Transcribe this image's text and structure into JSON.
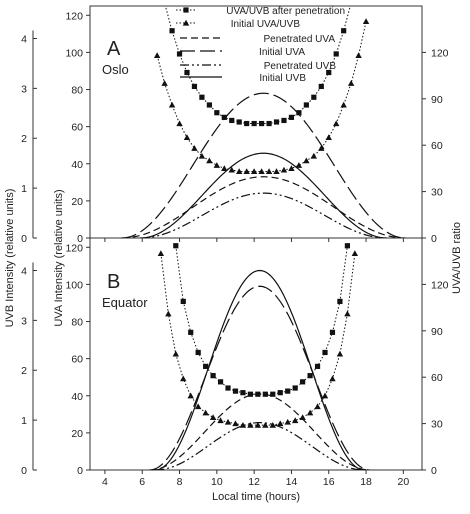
{
  "chart_data": {
    "type": "line",
    "xlabel": "Local time (hours)",
    "xlim": [
      3.2,
      21
    ],
    "xticks": [
      4,
      6,
      8,
      10,
      12,
      14,
      16,
      18,
      20
    ],
    "left_outer_axis": {
      "label": "UVB Intensity (relative units)",
      "ticks": [
        0,
        1,
        2,
        3,
        4
      ]
    },
    "left_axis": {
      "label": "UVA Intensity (relative units)",
      "ylim": [
        0,
        125
      ],
      "ticks": [
        0,
        20,
        40,
        60,
        80,
        100,
        120
      ]
    },
    "right_axis": {
      "label": "UVA/UVB ratio",
      "ylim": [
        0,
        150
      ],
      "ticks": [
        0,
        30,
        60,
        90,
        120
      ]
    },
    "legend": {
      "placement": "top-right of panel A",
      "entries": [
        {
          "name": "UVA/UVB after penetration",
          "style": "dotted-square"
        },
        {
          "name": "Initial UVA/UVB",
          "style": "dotted-triangle"
        },
        {
          "name": "Penetrated UVA",
          "style": "dash"
        },
        {
          "name": "Initial UVA",
          "style": "longdash"
        },
        {
          "name": "Penetrated UVB",
          "style": "dashdotdot"
        },
        {
          "name": "Initial UVB",
          "style": "solid"
        }
      ]
    },
    "panels": [
      {
        "letter": "A",
        "place": "Oslo",
        "uva_penetrated": {
          "center": 12.5,
          "peak": 33,
          "half_width": 7.6
        },
        "uva_initial": {
          "center": 12.5,
          "peak": 78,
          "half_width": 7.6
        },
        "uvb_penetrated": {
          "center": 12.5,
          "peak": 0.9,
          "half_width": 6.6
        },
        "uvb_initial": {
          "center": 12.5,
          "peak": 1.7,
          "half_width": 6.6
        },
        "ratio_after_penetration": {
          "x": [
            6.8,
            7.2,
            7.6,
            8.0,
            8.4,
            8.8,
            9.2,
            9.6,
            10.0,
            10.4,
            10.8,
            11.2,
            11.6,
            12.0,
            12.4,
            12.8,
            13.2,
            13.6,
            14.0,
            14.4,
            14.8,
            15.2,
            15.6,
            16.0,
            16.4,
            16.8,
            17.2,
            17.6,
            18.0
          ],
          "y": [
            173,
            152,
            134,
            119,
            107,
            98,
            91,
            86,
            81,
            78,
            76,
            75,
            74,
            74,
            74,
            74,
            75,
            76,
            78,
            81,
            86,
            91,
            98,
            107,
            119,
            134,
            152,
            173,
            198
          ]
        },
        "ratio_initial": {
          "x": [
            6.8,
            7.2,
            7.6,
            8.0,
            8.4,
            8.8,
            9.2,
            9.6,
            10.0,
            10.4,
            10.8,
            11.2,
            11.6,
            12.0,
            12.4,
            12.8,
            13.2,
            13.6,
            14.0,
            14.4,
            14.8,
            15.2,
            15.6,
            16.0,
            16.4,
            16.8,
            17.2,
            17.6,
            18.0
          ],
          "y": [
            118,
            100,
            86,
            74,
            65,
            58,
            53,
            50,
            47,
            45,
            44,
            43,
            43,
            43,
            43,
            43,
            43,
            44,
            45,
            47,
            50,
            53,
            58,
            65,
            74,
            86,
            100,
            118,
            140
          ]
        }
      },
      {
        "letter": "B",
        "place": "Equator",
        "uva_penetrated": {
          "center": 12.3,
          "peak": 41,
          "half_width": 5.9
        },
        "uva_initial": {
          "center": 12.3,
          "peak": 99,
          "half_width": 5.9
        },
        "uvb_penetrated": {
          "center": 12.3,
          "peak": 0.95,
          "half_width": 5.6
        },
        "uvb_initial": {
          "center": 12.3,
          "peak": 4.0,
          "half_width": 5.6
        },
        "ratio_after_penetration": {
          "x": [
            7.8,
            8.2,
            8.6,
            9.0,
            9.4,
            9.8,
            10.2,
            10.6,
            11.0,
            11.4,
            11.8,
            12.2,
            12.6,
            13.0,
            13.4,
            13.8,
            14.2,
            14.6,
            15.0,
            15.4,
            15.8,
            16.2,
            16.6,
            17.0
          ],
          "y": [
            145,
            109,
            89,
            76,
            67,
            61,
            57,
            53,
            51,
            50,
            49,
            49,
            49,
            49,
            50,
            51,
            53,
            57,
            61,
            67,
            76,
            89,
            109,
            145
          ]
        },
        "ratio_initial": {
          "x": [
            7.0,
            7.4,
            7.8,
            8.2,
            8.6,
            9.0,
            9.4,
            9.8,
            10.2,
            10.6,
            11.0,
            11.4,
            11.8,
            12.2,
            12.6,
            13.0,
            13.4,
            13.8,
            14.2,
            14.6,
            15.0,
            15.4,
            15.8,
            16.2,
            16.6,
            17.0,
            17.4
          ],
          "y": [
            140,
            101,
            75,
            59,
            48,
            41,
            37,
            34,
            32,
            31,
            30,
            29,
            29,
            29,
            29,
            29,
            30,
            31,
            32,
            34,
            37,
            41,
            48,
            59,
            75,
            101,
            140
          ]
        }
      }
    ]
  }
}
